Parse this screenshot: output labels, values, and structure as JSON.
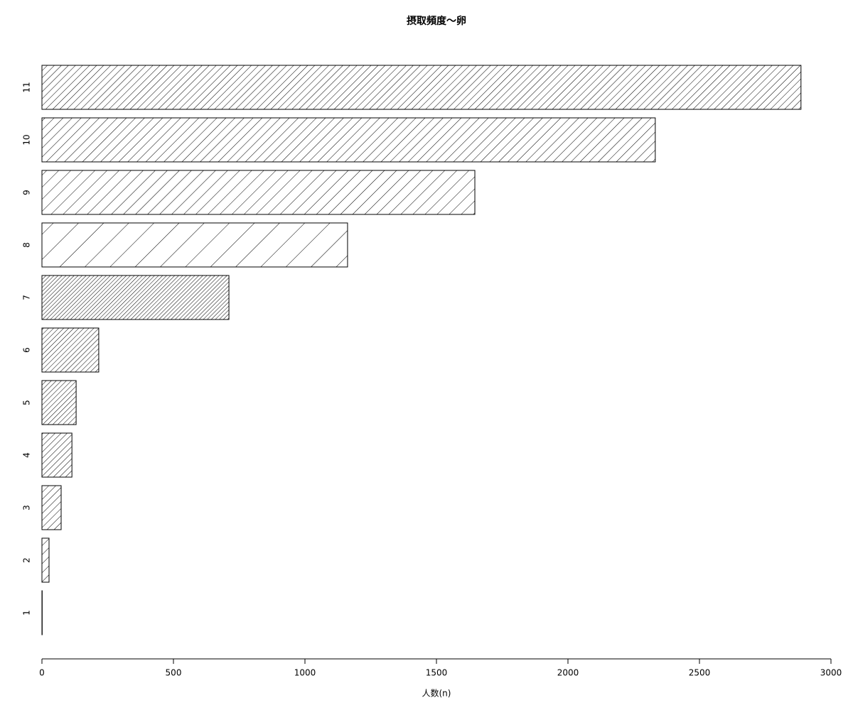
{
  "chart_data": {
    "type": "hbar",
    "title": "摂取頻度〜卵",
    "x_label": "人数(n)",
    "categories": [
      "1",
      "2",
      "3",
      "4",
      "5",
      "6",
      "7",
      "8",
      "9",
      "10",
      "11"
    ],
    "values": [
      1,
      27,
      73,
      114,
      130,
      216,
      711,
      1162,
      1646,
      2332,
      2886
    ],
    "color": "#000000",
    "xlim": [
      0,
      3000
    ],
    "xticks": [
      0,
      500,
      1000,
      1500,
      2000,
      2500,
      3000
    ]
  }
}
